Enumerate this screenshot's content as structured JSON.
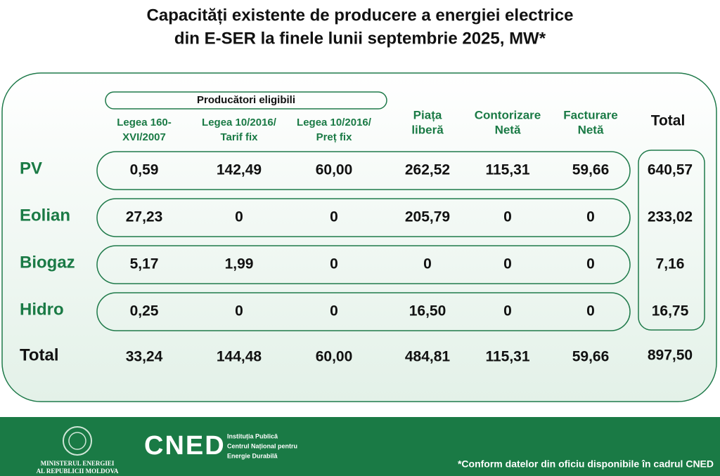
{
  "header": {
    "title": [
      "Capacități existente de producere a energiei electrice",
      "din E-SER la finele lunii septembrie 2025, MW*"
    ]
  },
  "table": {
    "group_header": "Producători eligibili",
    "columns": [
      [
        "Legea 160-",
        "XVI/2007"
      ],
      [
        "Legea 10/2016/",
        "Tarif fix"
      ],
      [
        "Legea 10/2016/",
        "Preț fix"
      ],
      [
        "Piața",
        "liberă"
      ],
      [
        "Contorizare",
        "Netă"
      ],
      [
        "Facturare",
        "Netă"
      ]
    ],
    "total_header": "Total",
    "rows": [
      {
        "label": "PV",
        "values": [
          "0,59",
          "142,49",
          "60,00",
          "262,52",
          "115,31",
          "59,66"
        ],
        "total": "640,57"
      },
      {
        "label": "Eolian",
        "values": [
          "27,23",
          "0",
          "0",
          "205,79",
          "0",
          "0"
        ],
        "total": "233,02"
      },
      {
        "label": "Biogaz",
        "values": [
          "5,17",
          "1,99",
          "0",
          "0",
          "0",
          "0"
        ],
        "total": "7,16"
      },
      {
        "label": "Hidro",
        "values": [
          "0,25",
          "0",
          "0",
          "16,50",
          "0",
          "0"
        ],
        "total": "16,75"
      }
    ],
    "totals": {
      "label": "Total",
      "values": [
        "33,24",
        "144,48",
        "60,00",
        "484,81",
        "115,31",
        "59,66"
      ],
      "total": "897,50"
    }
  },
  "footer": {
    "ministry": [
      "MINISTERUL ENERGIEI",
      "AL REPUBLICII MOLDOVA"
    ],
    "logo": "CNED",
    "institution": [
      "Instituția Publică",
      "Centrul Național pentru",
      "Energie Durabilă"
    ],
    "note": "*Conform datelor din oficiu disponibile în cadrul CNED"
  }
}
